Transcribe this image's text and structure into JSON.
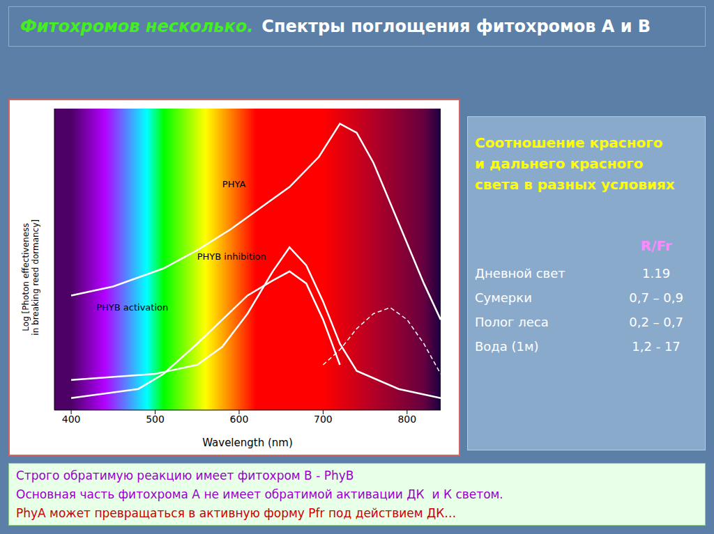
{
  "chart_data": {
    "type": "line",
    "title": "Фитохромов несколько.",
    "subtitle": "Спектры поглощения фитохромов А и В",
    "x_label": "Wavelength (nm)",
    "y_label": "Log [Photon effectiveness\nin breaking reed dormancy]",
    "xlim": [
      380,
      840
    ],
    "xticks": [
      400,
      500,
      600,
      700,
      800
    ],
    "ylim": [
      0,
      1
    ],
    "tick_labels": "x",
    "grid": false,
    "series": [
      {
        "name": "PHYA",
        "color": "#ffffff",
        "x": [
          400,
          450,
          480,
          510,
          550,
          590,
          630,
          660,
          695,
          720,
          740,
          760,
          790,
          820,
          840
        ],
        "values": [
          0.38,
          0.41,
          0.44,
          0.47,
          0.53,
          0.6,
          0.68,
          0.74,
          0.84,
          0.95,
          0.92,
          0.82,
          0.62,
          0.42,
          0.3
        ],
        "label_x": 580,
        "label_y": 0.74
      },
      {
        "name": "PHYB inhibition",
        "color": "#ffffff",
        "x": [
          400,
          500,
          550,
          580,
          610,
          640,
          660,
          680,
          700,
          720,
          740,
          790,
          840
        ],
        "values": [
          0.1,
          0.12,
          0.15,
          0.21,
          0.32,
          0.46,
          0.54,
          0.48,
          0.36,
          0.22,
          0.13,
          0.07,
          0.04
        ],
        "label_x": 550,
        "label_y": 0.5
      },
      {
        "name": "PHYB activation",
        "color": "#ffffff",
        "x": [
          400,
          480,
          510,
          550,
          580,
          610,
          640,
          660,
          680,
          700,
          720
        ],
        "values": [
          0.04,
          0.07,
          0.12,
          0.22,
          0.3,
          0.38,
          0.43,
          0.46,
          0.42,
          0.3,
          0.15
        ],
        "label_x": 430,
        "label_y": 0.33
      },
      {
        "color": "#ffffff",
        "line_style": "dashed",
        "x": [
          700,
          720,
          740,
          760,
          780,
          800,
          820,
          840
        ],
        "values": [
          0.15,
          0.2,
          0.27,
          0.32,
          0.34,
          0.3,
          0.22,
          0.12
        ]
      }
    ],
    "side_table": {
      "title": "Соотношение красного\nи дальнего красного\nсвета в разных условиях",
      "header": "R/Fr",
      "rows": [
        [
          "Дневной свет",
          "1.19"
        ],
        [
          "Сумерки",
          "0,7 – 0,9"
        ],
        [
          "Полог леса",
          "0,2 – 0,7"
        ],
        [
          "Вода (1м)",
          "1,2 - 17"
        ]
      ]
    },
    "notes": [
      {
        "text": "Строго обратимую реакцию имеет фитохром В - PhyB",
        "color": "#9900cc"
      },
      {
        "text": "Основная часть фитохрома А не имеет обратимой активации ДК  и К светом.",
        "color": "#9900cc"
      },
      {
        "text": "PhyA может превращаться в активную форму Pfr под действием ДК…",
        "color": "#cc0000"
      }
    ]
  }
}
